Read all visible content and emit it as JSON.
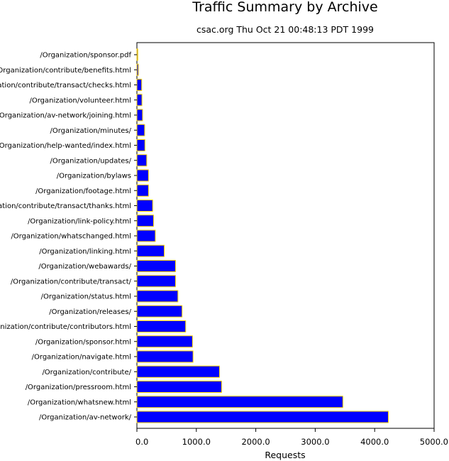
{
  "chart_data": {
    "type": "bar",
    "orientation": "horizontal",
    "title": "Traffic Summary by Archive",
    "subtitle": "csac.org Thu Oct 21 00:48:13 PDT 1999",
    "xlabel": "Requests",
    "ylabel": "",
    "xlim": [
      0,
      5000
    ],
    "xticks": [
      "0.0",
      "1000.0",
      "2000.0",
      "3000.0",
      "4000.0",
      "5000.0"
    ],
    "xtick_values": [
      0,
      1000,
      2000,
      3000,
      4000,
      5000
    ],
    "grid": false,
    "bar_color": "#0000ff",
    "bar_edge_color": "#ffd700",
    "categories": [
      "/Organization/sponsor.pdf",
      "/Organization/contribute/benefits.html",
      "/Organization/contribute/transact/checks.html",
      "/Organization/volunteer.html",
      "/Organization/av-network/joining.html",
      "/Organization/minutes/",
      "/Organization/help-wanted/index.html",
      "/Organization/updates/",
      "/Organization/bylaws",
      "/Organization/footage.html",
      "/Organization/contribute/transact/thanks.html",
      "/Organization/link-policy.html",
      "/Organization/whatschanged.html",
      "/Organization/linking.html",
      "/Organization/webawards/",
      "/Organization/contribute/transact/",
      "/Organization/status.html",
      "/Organization/releases/",
      "/Organization/contribute/contributors.html",
      "/Organization/sponsor.html",
      "/Organization/navigate.html",
      "/Organization/contribute/",
      "/Organization/pressroom.html",
      "/Organization/whatsnew.html",
      "/Organization/av-network/"
    ],
    "values": [
      15,
      25,
      80,
      85,
      95,
      130,
      135,
      165,
      195,
      195,
      265,
      280,
      310,
      460,
      650,
      650,
      690,
      760,
      820,
      935,
      945,
      1390,
      1425,
      3465,
      4230
    ]
  }
}
